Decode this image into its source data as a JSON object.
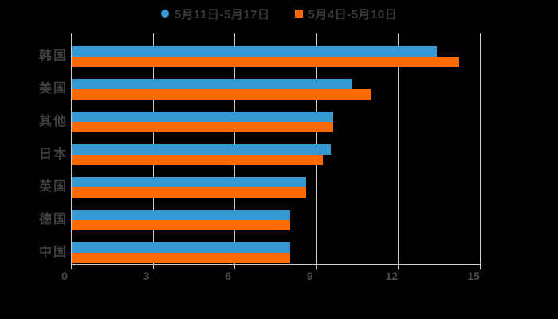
{
  "page": {
    "background": "#000000"
  },
  "legend": {
    "items": [
      {
        "label": "5月11日-5月17日",
        "color": "#3699d3",
        "marker": "circle"
      },
      {
        "label": "5月4日-5月10日",
        "color": "#ff6a00",
        "marker": "square"
      }
    ]
  },
  "chart_data": {
    "type": "bar",
    "orientation": "horizontal",
    "title": "",
    "xlabel": "",
    "ylabel": "",
    "categories": [
      "韩国",
      "美国",
      "其他",
      "日本",
      "英国",
      "德国",
      "中国"
    ],
    "series": [
      {
        "name": "5月11日-5月17日",
        "color": "#3699d3",
        "values": [
          13.4,
          10.3,
          9.6,
          9.5,
          8.6,
          8.0,
          8.0
        ]
      },
      {
        "name": "5月4日-5月10日",
        "color": "#ff6a00",
        "values": [
          14.2,
          11.0,
          9.6,
          9.2,
          8.6,
          8.0,
          8.0
        ]
      }
    ],
    "xlim": [
      0,
      15
    ],
    "x_ticks": [
      0,
      3,
      6,
      9,
      12,
      15
    ],
    "grid": true,
    "legend_position": "top-center",
    "axis_color": "#cbcbcb",
    "text_color": "#3f3f3f"
  }
}
